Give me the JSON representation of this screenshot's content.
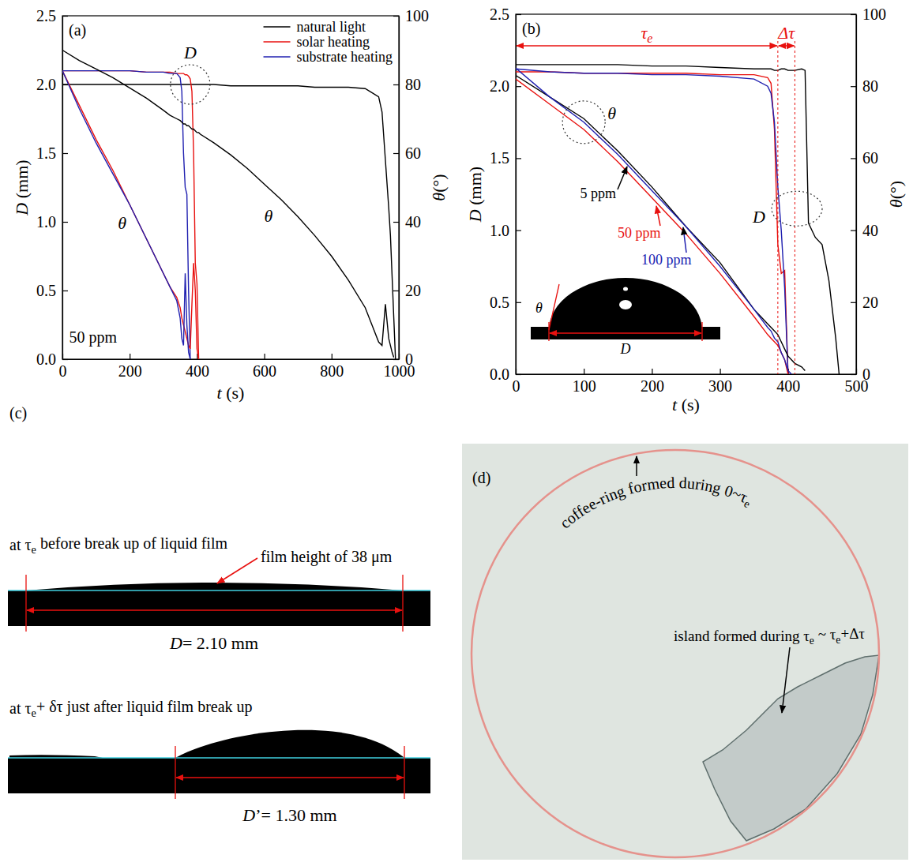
{
  "chart_data": [
    {
      "type": "line",
      "title": "(a)",
      "xlabel": "t (s)",
      "ylabel": "D (mm)",
      "y2label": "θ(°)",
      "xlim": [
        0,
        1000
      ],
      "xticks": [
        0,
        200,
        400,
        600,
        800,
        1000
      ],
      "ylim": [
        0,
        2.5
      ],
      "yticks": [
        {
          "value": 0,
          "label": "0.0"
        },
        0.5,
        {
          "value": 1,
          "label": "1.0"
        },
        1.5,
        {
          "value": 2,
          "label": "2.0"
        },
        2.5
      ],
      "y2lim": [
        0,
        100
      ],
      "y2ticks": [
        0,
        20,
        40,
        60,
        80,
        100
      ],
      "legend": "upper right",
      "grid": false,
      "annotations": [
        "D",
        "θ",
        "θ",
        "50 ppm"
      ],
      "x": [
        0,
        50,
        100,
        150,
        200,
        250,
        300,
        320,
        340,
        350,
        355,
        360,
        365,
        370,
        375,
        380,
        385,
        390,
        395,
        400,
        405,
        410,
        450,
        500,
        550,
        600,
        650,
        700,
        750,
        800,
        850,
        900,
        920,
        940,
        950,
        960,
        970,
        975,
        980,
        985,
        990,
        995,
        1000
      ],
      "series": [
        {
          "name": "natural light",
          "color": "#000000",
          "values": [
            2.0,
            2.0,
            2.0,
            2.0,
            2.0,
            2.0,
            2.0,
            2.0,
            2.0,
            2.0,
            2.0,
            2.0,
            2.0,
            2.0,
            2.0,
            2.0,
            2.0,
            2.0,
            2.0,
            2.0,
            2.0,
            2.0,
            2.0,
            1.99,
            1.99,
            1.99,
            1.99,
            1.99,
            1.98,
            1.98,
            1.98,
            1.97,
            1.94,
            1.91,
            1.8,
            1.45,
            1.1,
            0.9,
            0.6,
            0.3,
            0.0,
            null,
            null
          ]
        },
        {
          "name": "solar heating",
          "color": "#e8110f",
          "values": [
            2.1,
            2.1,
            2.1,
            2.1,
            2.1,
            2.09,
            2.09,
            2.09,
            2.08,
            2.08,
            2.08,
            2.08,
            2.07,
            2.07,
            2.06,
            2.04,
            1.95,
            1.5,
            0.7,
            0.55,
            0.0,
            null,
            null,
            null,
            null,
            null,
            null,
            null,
            null,
            null,
            null,
            null,
            null,
            null,
            null,
            null,
            null,
            null,
            null,
            null,
            null,
            null,
            null
          ]
        },
        {
          "name": "substrate heating",
          "color": "#2020b0",
          "values": [
            2.1,
            2.1,
            2.1,
            2.1,
            2.1,
            2.09,
            2.09,
            2.08,
            2.08,
            2.05,
            1.95,
            1.5,
            1.25,
            1.2,
            0.5,
            0.0,
            null,
            null,
            null,
            null,
            null,
            null,
            null,
            null,
            null,
            null,
            null,
            null,
            null,
            null,
            null,
            null,
            null,
            null,
            null,
            null,
            null,
            null,
            null,
            null,
            null,
            null,
            null
          ]
        },
        {
          "color": "#000000",
          "axis": "y2",
          "values": [
            90,
            87,
            84.5,
            82,
            79,
            76,
            72.5,
            71,
            70,
            69.5,
            69,
            68.5,
            68.5,
            68,
            68,
            67.5,
            67,
            67,
            66.5,
            66,
            66,
            65.5,
            63,
            59.5,
            55.5,
            51,
            46.5,
            41.5,
            36,
            30,
            23,
            15,
            10,
            5,
            4,
            16,
            6,
            4,
            2,
            0.5,
            null,
            null,
            null
          ]
        },
        {
          "color": "#e8110f",
          "axis": "y2",
          "values": [
            84,
            74,
            64,
            55,
            45,
            35,
            25,
            21,
            18,
            15,
            12,
            10,
            8,
            6,
            4,
            3,
            16,
            28,
            20,
            3,
            0,
            null,
            null,
            null,
            null,
            null,
            null,
            null,
            null,
            null,
            null,
            null,
            null,
            null,
            null,
            null,
            null,
            null,
            null,
            null,
            null,
            null,
            null
          ]
        },
        {
          "color": "#2020b0",
          "axis": "y2",
          "values": [
            84,
            73,
            63,
            54,
            45,
            35,
            25,
            21,
            17,
            12,
            6,
            4,
            25,
            10,
            2,
            0,
            null,
            null,
            null,
            null,
            null,
            null,
            null,
            null,
            null,
            null,
            null,
            null,
            null,
            null,
            null,
            null,
            null,
            null,
            null,
            null,
            null,
            null,
            null,
            null,
            null,
            null,
            null
          ]
        }
      ]
    },
    {
      "type": "line",
      "title": "(b)",
      "xlabel": "t (s)",
      "ylabel": "D (mm)",
      "y2label": "θ(°)",
      "xlim": [
        0,
        500
      ],
      "xticks": [
        0,
        100,
        200,
        300,
        400,
        500
      ],
      "ylim": [
        0,
        2.5
      ],
      "yticks": [
        {
          "value": 0,
          "label": "0.0"
        },
        0.5,
        {
          "value": 1,
          "label": "1.0"
        },
        1.5,
        {
          "value": 2,
          "label": "2.0"
        },
        2.5
      ],
      "y2lim": [
        0,
        100
      ],
      "y2ticks": [
        0,
        20,
        40,
        60,
        80,
        100
      ],
      "grid": false,
      "annotations": [
        "θ",
        "D",
        "5 ppm",
        "50 ppm",
        "100 ppm"
      ],
      "inset_labels": [
        "θ",
        "D"
      ],
      "intervals": [
        {
          "label": "τe",
          "start": 0,
          "end": 385
        },
        {
          "label": "Δτ",
          "start": 385,
          "end": 410
        }
      ],
      "x": [
        0,
        50,
        100,
        150,
        200,
        250,
        300,
        350,
        370,
        375,
        380,
        385,
        390,
        395,
        400,
        405,
        410,
        420,
        425,
        430,
        440,
        450,
        460,
        470,
        475
      ],
      "series": [
        {
          "color": "#000000",
          "values": [
            2.15,
            2.15,
            2.15,
            2.15,
            2.14,
            2.14,
            2.13,
            2.12,
            2.12,
            2.12,
            2.11,
            2.11,
            2.12,
            2.12,
            2.11,
            2.11,
            2.11,
            2.12,
            2.11,
            1.05,
            0.95,
            0.9,
            0.65,
            0.25,
            0.0
          ]
        },
        {
          "color": "#e8110f",
          "values": [
            2.1,
            2.1,
            2.09,
            2.09,
            2.09,
            2.09,
            2.08,
            2.08,
            2.06,
            2.02,
            1.7,
            0.9,
            0.7,
            0.72,
            0.0,
            null,
            null,
            null,
            null,
            null,
            null,
            null,
            null,
            null,
            null
          ]
        },
        {
          "color": "#2020b0",
          "values": [
            2.12,
            2.1,
            2.09,
            2.09,
            2.08,
            2.08,
            2.07,
            2.05,
            2.0,
            1.95,
            1.75,
            1.3,
            1.0,
            0.6,
            0.0,
            null,
            null,
            null,
            null,
            null,
            null,
            null,
            null,
            null,
            null
          ]
        },
        {
          "color": "#000000",
          "axis": "y2",
          "values": [
            83,
            77,
            71,
            62,
            52,
            41,
            31,
            18,
            14,
            13,
            12,
            11,
            9,
            7,
            5,
            4,
            3,
            2,
            1,
            null,
            null,
            null,
            null,
            null,
            null
          ]
        },
        {
          "color": "#e8110f",
          "axis": "y2",
          "values": [
            82,
            75,
            68,
            59,
            49,
            39,
            28,
            16,
            11,
            10,
            9,
            8,
            6,
            4,
            0,
            null,
            null,
            null,
            null,
            null,
            null,
            null,
            null,
            null,
            null
          ]
        },
        {
          "color": "#2020b0",
          "axis": "y2",
          "values": [
            85,
            77,
            70,
            61,
            51,
            41,
            30,
            18,
            13,
            12,
            10,
            9,
            6,
            4,
            1,
            0,
            null,
            null,
            null,
            null,
            null,
            null,
            null,
            null,
            null
          ]
        }
      ]
    }
  ],
  "figure": {
    "panels": [
      {
        "label": "(c)",
        "profiles": [
          {
            "caption": "at τe before break up of liquid film",
            "note": "film height of 38 μm",
            "dimension": "D= 2.10 mm"
          },
          {
            "caption": "at τe+ δτ just after liquid film break up",
            "dimension": "D’= 1.30 mm"
          }
        ]
      },
      {
        "label": "(d)",
        "annotations": [
          "coffee-ring formed during 0~τe",
          "island formed during τe ~ τe+Δτ"
        ]
      }
    ]
  }
}
